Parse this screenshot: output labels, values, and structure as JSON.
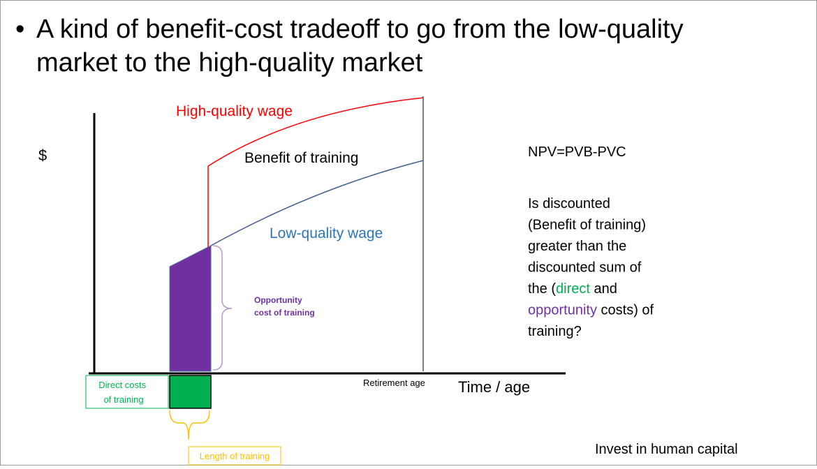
{
  "bullet": "A kind of benefit-cost tradeoff to go from the low-quality market to the high-quality market",
  "diagram": {
    "y_axis_label": "$",
    "x_axis_label": "Time / age",
    "high_wage": "High-quality wage",
    "benefit": "Benefit of training",
    "low_wage": "Low-quality wage",
    "opportunity_cost": [
      "Opportunity",
      "cost of training"
    ],
    "direct_costs": [
      "Direct costs",
      "of training"
    ],
    "length": "Length of training",
    "retirement": "Retirement age"
  },
  "side": {
    "formula": "NPV=PVB-PVC",
    "question": [
      [
        "Is discounted"
      ],
      [
        "(Benefit of training)"
      ],
      [
        "greater than the"
      ],
      [
        "discounted sum of"
      ],
      [
        "the (",
        "direct",
        " and"
      ],
      [
        "opportunity",
        " costs) of"
      ],
      [
        "training?"
      ]
    ],
    "footer": "Invest in human capital"
  }
}
